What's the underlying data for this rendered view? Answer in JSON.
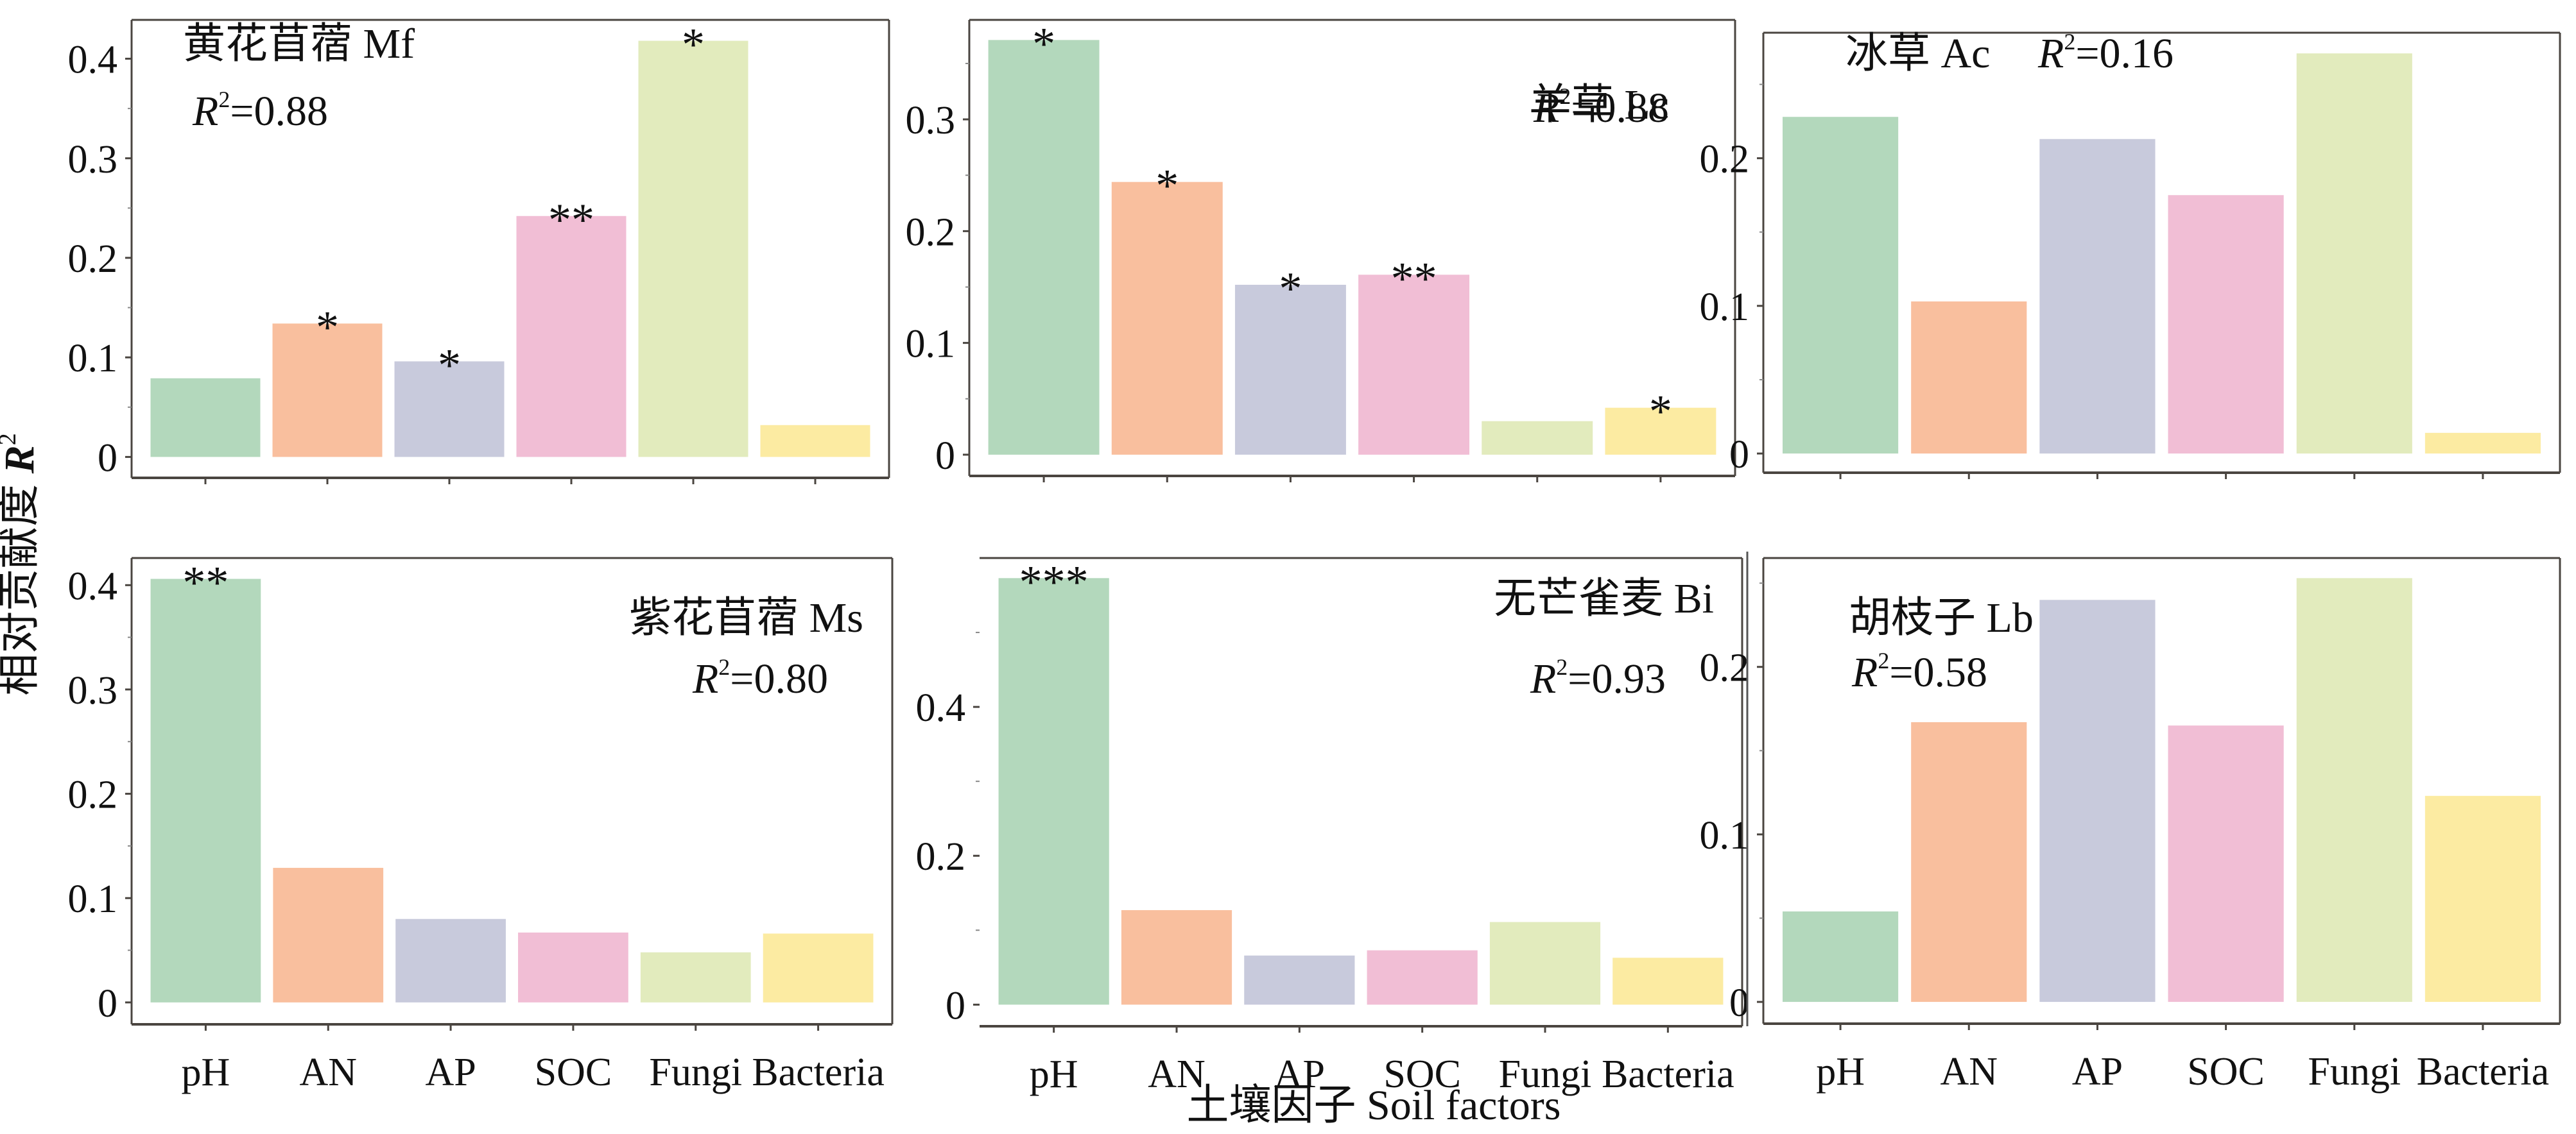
{
  "chart_data": {
    "type": "bar",
    "layout": "2x3 grid of panels",
    "categories": [
      "pH",
      "AN",
      "AP",
      "SOC",
      "Fungi",
      "Bacteria"
    ],
    "colors": [
      "#B3D8BC",
      "#F9BF9E",
      "#C8CADC",
      "#F1BED5",
      "#E2EBBD",
      "#FCEBA2"
    ],
    "ylabel": "相对贡献度 R²",
    "ylabel_main": "相对贡献度 ",
    "ylabel_italic": "R",
    "ylabel_sup": "2",
    "xlabel": "土壤因子 Soil factors",
    "panels": [
      {
        "id": "Mf",
        "title": "黄花苜蓿 Mf",
        "r2_label": "=0.88",
        "r2": 0.88,
        "values": [
          0.079,
          0.134,
          0.096,
          0.242,
          0.418,
          0.032
        ],
        "significance": [
          "",
          "*",
          "*",
          "**",
          "*",
          ""
        ],
        "yticks": [
          0,
          0.1,
          0.2,
          0.3,
          0.4
        ],
        "ytick_labels": [
          "0",
          "0.1",
          "0.2",
          "0.3",
          "0.4"
        ],
        "ylim": [
          -0.021,
          0.439
        ],
        "show_xlabels": false,
        "annotation_position": "top-left"
      },
      {
        "id": "Lc",
        "title": "羊草 Lc",
        "r2_label": "=0.88",
        "r2": 0.88,
        "values": [
          0.371,
          0.244,
          0.152,
          0.161,
          0.03,
          0.042
        ],
        "significance": [
          "*",
          "*",
          "*",
          "**",
          "",
          "*"
        ],
        "yticks": [
          0,
          0.1,
          0.2,
          0.3
        ],
        "ytick_labels": [
          "0",
          "0.1",
          "0.2",
          "0.3"
        ],
        "ylim": [
          -0.019,
          0.389
        ],
        "show_xlabels": false,
        "annotation_position": "top-right"
      },
      {
        "id": "Ac",
        "title": "冰草 Ac",
        "r2_label": "=0.16",
        "r2": 0.16,
        "values": [
          0.228,
          0.103,
          0.213,
          0.175,
          0.271,
          0.014
        ],
        "significance": [
          "",
          "",
          "",
          "",
          "",
          ""
        ],
        "yticks": [
          0,
          0.1,
          0.2
        ],
        "ytick_labels": [
          "0",
          "0.1",
          "0.2"
        ],
        "ylim": [
          -0.013,
          0.285
        ],
        "show_xlabels": false,
        "annotation_position": "top-left-inline"
      },
      {
        "id": "Ms",
        "title": "紫花苜蓿 Ms",
        "r2_label": "=0.80",
        "r2": 0.8,
        "values": [
          0.406,
          0.129,
          0.08,
          0.067,
          0.048,
          0.066
        ],
        "significance": [
          "**",
          "",
          "",
          "",
          "",
          ""
        ],
        "yticks": [
          0,
          0.1,
          0.2,
          0.3,
          0.4
        ],
        "ytick_labels": [
          "0",
          "0.1",
          "0.2",
          "0.3",
          "0.4"
        ],
        "ylim": [
          -0.021,
          0.426
        ],
        "show_xlabels": true,
        "annotation_position": "top-right"
      },
      {
        "id": "Bi",
        "title": "无芒雀麦 Bi",
        "r2_label": "=0.93",
        "r2": 0.93,
        "values": [
          0.573,
          0.127,
          0.066,
          0.073,
          0.111,
          0.063
        ],
        "significance": [
          "***",
          "",
          "",
          "",
          "",
          ""
        ],
        "yticks": [
          0,
          0.2,
          0.4
        ],
        "ytick_labels": [
          "0",
          "0.2",
          "0.4"
        ],
        "ylim": [
          -0.029,
          0.6
        ],
        "show_xlabels": true,
        "annotation_position": "top-right"
      },
      {
        "id": "Lb",
        "title": "胡枝子 Lb",
        "r2_label": "=0.58",
        "r2": 0.58,
        "values": [
          0.054,
          0.167,
          0.24,
          0.165,
          0.253,
          0.123
        ],
        "significance": [
          "",
          "",
          "",
          "",
          "",
          ""
        ],
        "yticks": [
          0,
          0.1,
          0.2
        ],
        "ytick_labels": [
          "0",
          "0.1",
          "0.2"
        ],
        "ylim": [
          -0.013,
          0.265
        ],
        "show_xlabels": true,
        "annotation_position": "top-left"
      }
    ]
  }
}
